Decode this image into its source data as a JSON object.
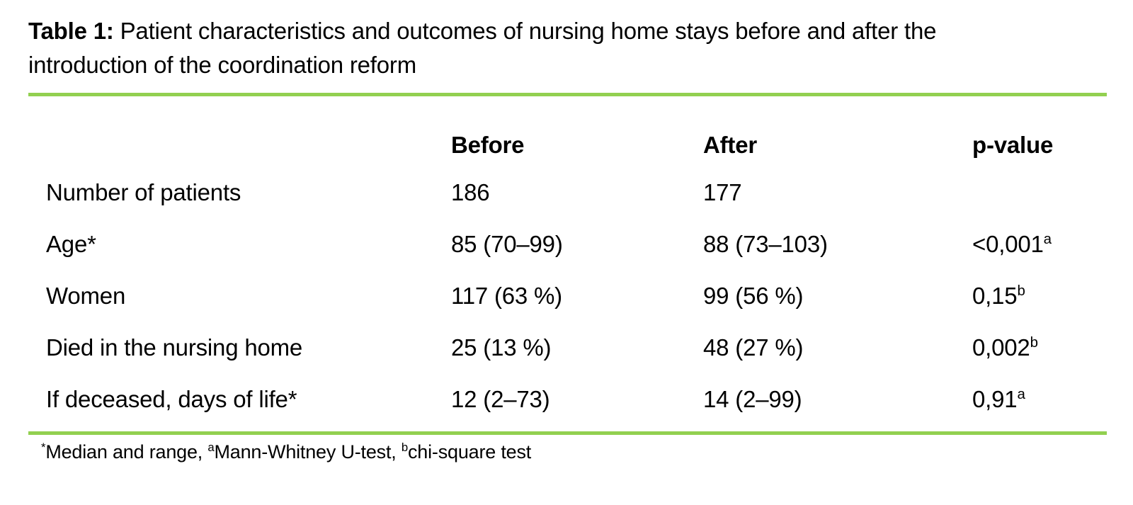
{
  "title": {
    "label": "Table 1:",
    "text": " Patient characteristics and outcomes of nursing home stays before and after the introduction of the coordination reform"
  },
  "table": {
    "columns": [
      "",
      "Before",
      "After",
      "p-value"
    ],
    "rows": [
      {
        "label": "Number of patients",
        "before": "186",
        "after": "177",
        "p": "",
        "p_sup": ""
      },
      {
        "label": "Age*",
        "before": "85 (70–99)",
        "after": "88 (73–103)",
        "p": "<0,001",
        "p_sup": "a"
      },
      {
        "label": "Women",
        "before": "117 (63 %)",
        "after": "99 (56 %)",
        "p": "0,15",
        "p_sup": "b"
      },
      {
        "label": "Died in the nursing home",
        "before": "25 (13 %)",
        "after": "48 (27 %)",
        "p": "0,002",
        "p_sup": "b"
      },
      {
        "label": "If deceased, days of life*",
        "before": "12 (2–73)",
        "after": "14 (2–99)",
        "p": "0,91",
        "p_sup": "a"
      }
    ]
  },
  "footnote": {
    "parts": [
      {
        "sup": "*",
        "text": "Median and range, "
      },
      {
        "sup": "a",
        "text": "Mann-Whitney U-test, "
      },
      {
        "sup": "b",
        "text": "chi-square test"
      }
    ]
  },
  "colors": {
    "rule_green": "#92D050",
    "text": "#000000",
    "background": "#FFFFFF"
  },
  "chart_data": {
    "type": "table",
    "title": "Table 1: Patient characteristics and outcomes of nursing home stays before and after the introduction of the coordination reform",
    "columns": [
      "",
      "Before",
      "After",
      "p-value"
    ],
    "rows": [
      [
        "Number of patients",
        "186",
        "177",
        ""
      ],
      [
        "Age*",
        "85 (70–99)",
        "88 (73–103)",
        "<0,001 a"
      ],
      [
        "Women",
        "117 (63 %)",
        "99 (56 %)",
        "0,15 b"
      ],
      [
        "Died in the nursing home",
        "25 (13 %)",
        "48 (27 %)",
        "0,002 b"
      ],
      [
        "If deceased, days of life*",
        "12 (2–73)",
        "14 (2–99)",
        "0,91 a"
      ]
    ],
    "footnote": "*Median and range, aMann-Whitney U-test, bchi-square test"
  }
}
